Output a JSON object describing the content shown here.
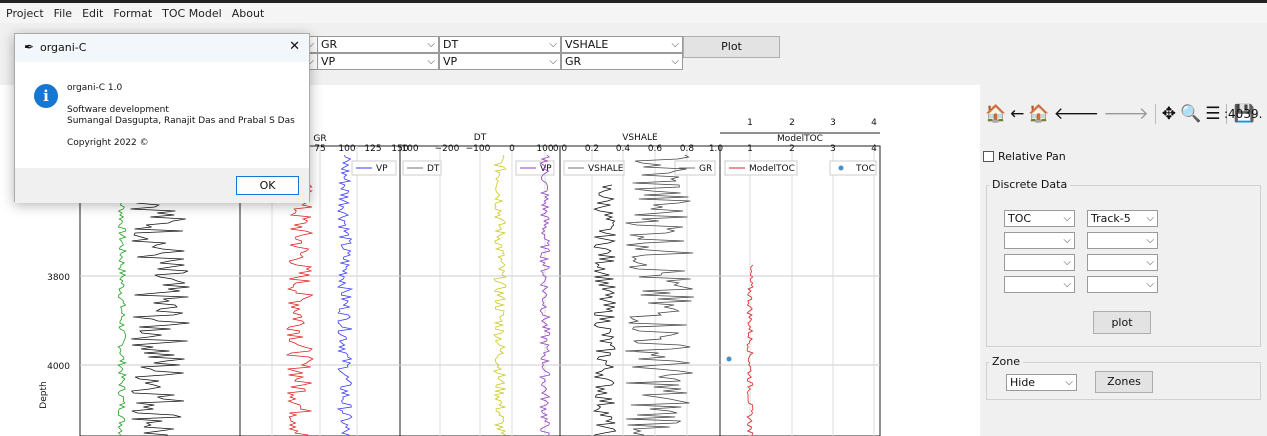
{
  "menu": [
    "Project",
    "File",
    "Edit",
    "Format",
    "TOC Model",
    "About"
  ],
  "selectors": {
    "row1": [
      "GR",
      "DT",
      "VSHALE"
    ],
    "row2": [
      "VP",
      "VP",
      "GR"
    ],
    "plot_label": "Plot"
  },
  "dialog": {
    "title": "organi-C",
    "app_name": "organi-C 1.0",
    "line1": "Software development",
    "line2": "Sumangal Dasgupta, Ranajit Das and Prabal S Das",
    "copyright": "Copyright 2022 ©",
    "ok_label": "OK",
    "close_glyph": "✕",
    "info_glyph": "i"
  },
  "plot": {
    "y_label": "Depth",
    "y_ticks": [
      "3800",
      "4000"
    ],
    "track2": {
      "axis_label": "GR",
      "ticks": [
        "75",
        "100",
        "125",
        "150"
      ],
      "legend": "VP",
      "legend_color": "#3a3aff"
    },
    "track3": {
      "axis_label": "DT",
      "ticks": [
        "100",
        "−200",
        "−100",
        "0",
        "100"
      ],
      "legend_dt": "DT",
      "legend_vp": "VP"
    },
    "track4": {
      "axis_label": "VSHALE",
      "ticks": [
        "0.0",
        "0.2",
        "0.4",
        "0.6",
        "0.8",
        "1.0"
      ],
      "legend_vshale": "VSHALE",
      "legend_gr": "GR"
    },
    "track5": {
      "axis_label": "ModelTOC",
      "top_ticks": [
        "1",
        "2",
        "3",
        "4"
      ],
      "bottom_ticks": [
        "1",
        "2",
        "3",
        "4"
      ],
      "legend_model": "ModelTOC",
      "legend_toc": "TOC"
    }
  },
  "toolbar": {
    "home": "🏠",
    "back": "←",
    "home2": "🏠",
    "left": "🡐",
    "right": "🡒",
    "pan": "✥",
    "zoom": "🔍",
    "config": "☰",
    "save": "💾",
    "coord": ":4039."
  },
  "right_panel": {
    "relative_pan": "Relative Pan",
    "discrete_title": "Discrete Data",
    "dd_rows": [
      [
        "TOC",
        "Track-5"
      ],
      [
        "",
        ""
      ],
      [
        "",
        ""
      ],
      [
        "",
        ""
      ]
    ],
    "plot_label": "plot",
    "zone_title": "Zone",
    "zone_value": "Hide",
    "zones_label": "Zones"
  },
  "colors": {
    "accent": "#1677d2",
    "gr": "#e02020",
    "vp": "#3a3aff",
    "dt": "#c8c820",
    "green": "#20a020",
    "purple": "#9040c0"
  }
}
